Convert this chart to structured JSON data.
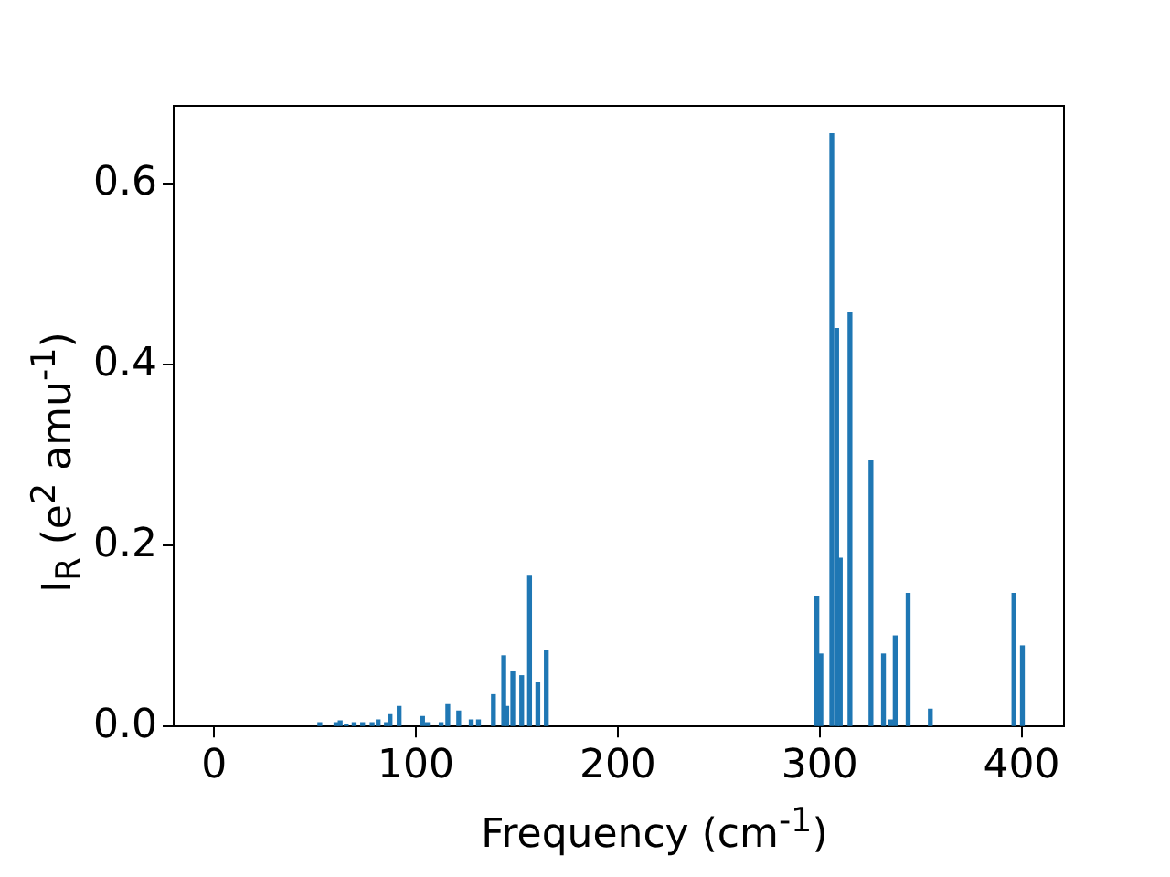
{
  "chart_data": {
    "type": "bar",
    "xlabel": "Frequency (cm$^{-1}$)",
    "ylabel": "I$_{R}$ (e$^{2}$ amu$^{-1}$)",
    "x": [
      52.4,
      60.4,
      62.5,
      65.5,
      69.4,
      73.6,
      78.3,
      81.3,
      85.4,
      87.2,
      91.7,
      103.3,
      105.7,
      112.5,
      115.8,
      121.2,
      127.4,
      131,
      138.4,
      143.5,
      145,
      148,
      152.4,
      156.3,
      160.4,
      164.6,
      298.6,
      300.6,
      306,
      308.4,
      310.2,
      315,
      325.4,
      331.6,
      335.2,
      337.4,
      343.8,
      354.8,
      396.2,
      400.4
    ],
    "values": [
      0.004,
      0.004,
      0.006,
      0.002,
      0.004,
      0.004,
      0.004,
      0.007,
      0.004,
      0.013,
      0.022,
      0.011,
      0.004,
      0.004,
      0.024,
      0.017,
      0.007,
      0.007,
      0.035,
      0.078,
      0.022,
      0.061,
      0.056,
      0.167,
      0.048,
      0.084,
      0.144,
      0.08,
      0.655,
      0.44,
      0.186,
      0.458,
      0.294,
      0.08,
      0.007,
      0.1,
      0.147,
      0.019,
      0.147,
      0.089
    ],
    "color": "#1f77b4",
    "xlim": [
      -20,
      421
    ],
    "xticks": [
      0,
      100,
      200,
      300,
      400
    ],
    "ylim": [
      0,
      0.686
    ],
    "yticks": [
      {
        "value": 0,
        "label": "0.0"
      },
      {
        "value": 0.2,
        "label": "0.2"
      },
      {
        "value": 0.4,
        "label": "0.4"
      },
      {
        "value": 0.6,
        "label": "0.6"
      }
    ],
    "grid": false,
    "legend": false
  }
}
